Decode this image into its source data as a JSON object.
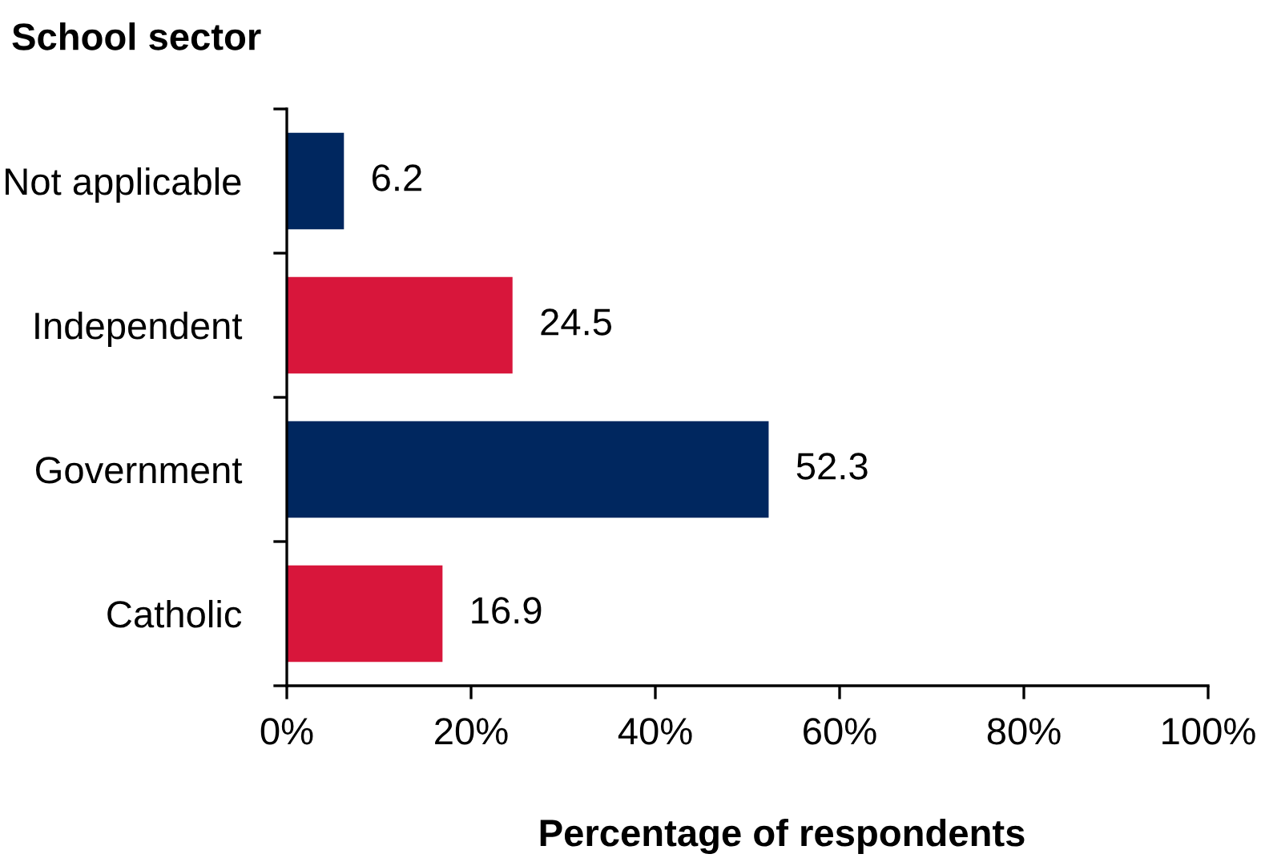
{
  "chart_data": {
    "type": "bar",
    "orientation": "horizontal",
    "ylabel": "School sector",
    "xlabel": "Percentage of respondents",
    "categories": [
      "Not applicable",
      "Independent",
      "Government",
      "Catholic"
    ],
    "values": [
      6.2,
      24.5,
      52.3,
      16.9
    ],
    "colors": [
      "#00275f",
      "#d8163b",
      "#00275f",
      "#d8163b"
    ],
    "xlim": [
      0,
      100
    ],
    "xticks": [
      {
        "value": 0,
        "label": "0%"
      },
      {
        "value": 20,
        "label": "20%"
      },
      {
        "value": 40,
        "label": "40%"
      },
      {
        "value": 60,
        "label": "60%"
      },
      {
        "value": 80,
        "label": "80%"
      },
      {
        "value": 100,
        "label": "100%"
      }
    ],
    "data_labels": true
  }
}
